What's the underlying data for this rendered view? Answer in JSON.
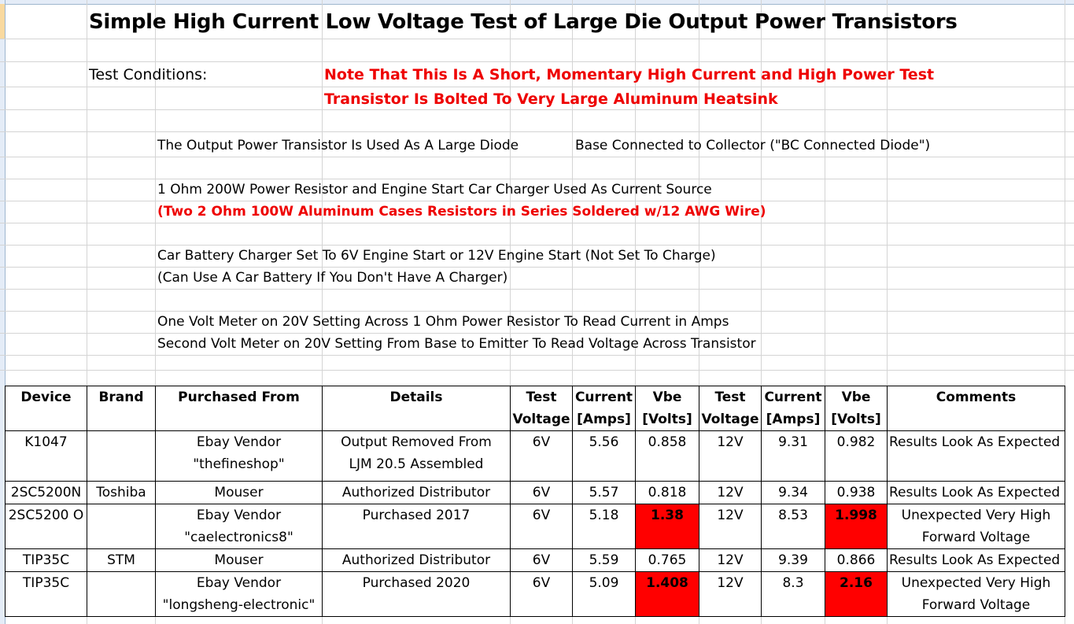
{
  "sheet": {
    "title": "Simple High Current Low Voltage Test of Large Die Output Power Transistors",
    "test_conditions_label": "Test Conditions:",
    "note_line1": "Note That This Is A Short, Momentary High Current and High Power Test",
    "note_line2": "Transistor Is Bolted To Very Large Aluminum Heatsink",
    "diode_text": "The Output Power Transistor Is Used As  A Large Diode",
    "base_text": "Base Connected to Collector (\"BC Connected Diode\")",
    "resistor_text": "1 Ohm 200W Power Resistor and Engine Start Car Charger Used As Current Source",
    "resistor_note": "(Two 2 Ohm 100W Aluminum Cases Resistors in Series Soldered w/12 AWG Wire)",
    "charger_text": "Car Battery Charger Set To 6V Engine Start or 12V Engine Start (Not Set To Charge)",
    "charger_note": "(Can Use A Car Battery If You Don't Have A Charger)",
    "meter1_text": "One Volt Meter on 20V Setting Across 1 Ohm Power Resistor To Read Current in Amps",
    "meter2_text": "Second Volt Meter on 20V Setting From Base to Emitter To Read Voltage Across Transistor"
  },
  "table": {
    "headers": {
      "device": "Device",
      "brand": "Brand",
      "purchased": "Purchased From",
      "details": "Details",
      "test_voltage_1a": "Test",
      "test_voltage_1b": "Voltage",
      "current_1a": "Current",
      "current_1b": "[Amps]",
      "vbe_1a": "Vbe",
      "vbe_1b": "[Volts]",
      "test_voltage_2a": "Test",
      "test_voltage_2b": "Voltage",
      "current_2a": "Current",
      "current_2b": "[Amps]",
      "vbe_2a": "Vbe",
      "vbe_2b": "[Volts]",
      "comments": "Comments"
    },
    "rows": [
      {
        "device": "K1047",
        "brand": "",
        "purchased_a": "Ebay Vendor",
        "purchased_b": "\"thefineshop\"",
        "details_a": "Output Removed From",
        "details_b": "LJM 20.5 Assembled",
        "tv1": "6V",
        "cur1": "5.56",
        "vbe1": "0.858",
        "tv2": "12V",
        "cur2": "9.31",
        "vbe2": "0.982",
        "comment_a": "Results Look As Expected",
        "comment_b": ""
      },
      {
        "device": "2SC5200N",
        "brand": "Toshiba",
        "purchased_a": "Mouser",
        "purchased_b": "",
        "details_a": "Authorized Distributor",
        "details_b": "",
        "tv1": "6V",
        "cur1": "5.57",
        "vbe1": "0.818",
        "tv2": "12V",
        "cur2": "9.34",
        "vbe2": "0.938",
        "comment_a": "Results Look As Expected",
        "comment_b": ""
      },
      {
        "device": "2SC5200 O",
        "brand": "",
        "purchased_a": "Ebay Vendor",
        "purchased_b": "\"caelectronics8\"",
        "details_a": "Purchased 2017",
        "details_b": "",
        "tv1": "6V",
        "cur1": "5.18",
        "vbe1": "1.38",
        "tv2": "12V",
        "cur2": "8.53",
        "vbe2": "1.998",
        "comment_a": "Unexpected Very High",
        "comment_b": "Forward Voltage"
      },
      {
        "device": "TIP35C",
        "brand": "STM",
        "purchased_a": "Mouser",
        "purchased_b": "",
        "details_a": "Authorized Distributor",
        "details_b": "",
        "tv1": "6V",
        "cur1": "5.59",
        "vbe1": "0.765",
        "tv2": "12V",
        "cur2": "9.39",
        "vbe2": "0.866",
        "comment_a": "Results Look As Expected",
        "comment_b": ""
      },
      {
        "device": "TIP35C",
        "brand": "",
        "purchased_a": "Ebay Vendor",
        "purchased_b": "\"longsheng-electronic\"",
        "details_a": "Purchased 2020",
        "details_b": "",
        "tv1": "6V",
        "cur1": "5.09",
        "vbe1": "1.408",
        "tv2": "12V",
        "cur2": "8.3",
        "vbe2": "2.16",
        "comment_a": "Unexpected Very High",
        "comment_b": "Forward Voltage"
      }
    ],
    "highlight_color": "#ff0000"
  }
}
